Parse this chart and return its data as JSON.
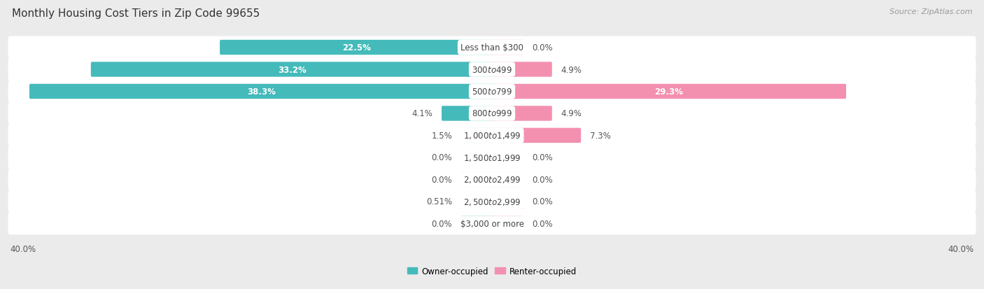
{
  "title": "Monthly Housing Cost Tiers in Zip Code 99655",
  "source": "Source: ZipAtlas.com",
  "categories": [
    "Less than $300",
    "$300 to $499",
    "$500 to $799",
    "$800 to $999",
    "$1,000 to $1,499",
    "$1,500 to $1,999",
    "$2,000 to $2,499",
    "$2,500 to $2,999",
    "$3,000 or more"
  ],
  "owner_values": [
    22.5,
    33.2,
    38.3,
    4.1,
    1.5,
    0.0,
    0.0,
    0.51,
    0.0
  ],
  "renter_values": [
    0.0,
    4.9,
    29.3,
    4.9,
    7.3,
    0.0,
    0.0,
    0.0,
    0.0
  ],
  "owner_color": "#45BABA",
  "renter_color": "#F390B0",
  "owner_label": "Owner-occupied",
  "renter_label": "Renter-occupied",
  "background_color": "#EBEBEB",
  "row_bg_even": "#F8F8F8",
  "row_bg_odd": "#EFEFEF",
  "xlim": 40.0,
  "title_fontsize": 11,
  "label_fontsize": 8.5,
  "source_fontsize": 8,
  "value_fontsize": 8.5,
  "legend_fontsize": 8.5,
  "axis_label_fontsize": 8.5,
  "bar_height": 0.52,
  "stub_size": 2.5
}
